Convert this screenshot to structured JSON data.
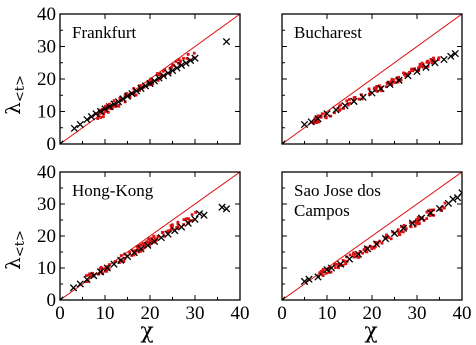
{
  "figure": {
    "ylabel_main": "λ",
    "ylabel_sub": "<t>",
    "xlabel": "χ",
    "accent_color": "#dd1111",
    "fit_color": "#000000"
  },
  "chart_data": [
    {
      "type": "scatter",
      "title": "Frankfurt",
      "title_lines": [
        "Frankfurt"
      ],
      "xlim": [
        0,
        40
      ],
      "ylim": [
        0,
        40
      ],
      "xticks": [
        "0",
        "10",
        "20",
        "30",
        "40"
      ],
      "yticks": [
        "0",
        "10",
        "20",
        "30",
        "40"
      ],
      "reference_line": {
        "x": [
          0,
          40
        ],
        "y": [
          0,
          40
        ]
      },
      "cloud": {
        "x_start": 8,
        "x_end": 30,
        "y_start": 8.5,
        "y_end": 27.8,
        "spread": 1.3,
        "n": 90
      },
      "series": [
        {
          "values": [
            [
              0,
              0
            ],
            [
              3.2,
              4.8
            ],
            [
              4.5,
              6
            ],
            [
              6,
              7.5
            ],
            [
              7,
              8.4
            ],
            [
              8,
              9.3
            ],
            [
              9,
              10
            ],
            [
              10,
              10.8
            ],
            [
              11,
              11.5
            ],
            [
              12,
              12.3
            ],
            [
              13,
              13
            ],
            [
              14,
              13.9
            ],
            [
              15,
              14.7
            ],
            [
              16,
              15.5
            ],
            [
              17,
              16.3
            ],
            [
              18,
              17.1
            ],
            [
              19,
              17.9
            ],
            [
              20,
              18.6
            ],
            [
              21,
              19.4
            ],
            [
              22,
              20.3
            ],
            [
              23,
              21
            ],
            [
              24,
              21.8
            ],
            [
              25,
              22.6
            ],
            [
              26,
              23.4
            ],
            [
              27,
              24.2
            ],
            [
              28,
              24.9
            ],
            [
              29,
              25.7
            ],
            [
              30,
              26.4
            ],
            [
              37,
              31.5
            ]
          ]
        }
      ]
    },
    {
      "type": "scatter",
      "title": "Bucharest",
      "title_lines": [
        "Bucharest"
      ],
      "xlim": [
        0,
        40
      ],
      "ylim": [
        0,
        40
      ],
      "xticks": [
        "0",
        "10",
        "20",
        "30",
        "40"
      ],
      "yticks": [
        "0",
        "10",
        "20",
        "30",
        "40"
      ],
      "reference_line": {
        "x": [
          0,
          40
        ],
        "y": [
          0,
          40
        ]
      },
      "cloud": {
        "x_start": 7,
        "x_end": 35,
        "y_start": 7.2,
        "y_end": 26.5,
        "spread": 1.1,
        "n": 110
      },
      "series": [
        {
          "values": [
            [
              0,
              0
            ],
            [
              5,
              6
            ],
            [
              6.5,
              6.8
            ],
            [
              8,
              7.8
            ],
            [
              10,
              9.3
            ],
            [
              12,
              10.5
            ],
            [
              14,
              11.8
            ],
            [
              16,
              13.1
            ],
            [
              18,
              14.4
            ],
            [
              20,
              15.7
            ],
            [
              22,
              17
            ],
            [
              24,
              18.3
            ],
            [
              26,
              19.6
            ],
            [
              28,
              21
            ],
            [
              30,
              22.3
            ],
            [
              32,
              23.6
            ],
            [
              34,
              25
            ],
            [
              36,
              26
            ],
            [
              37.5,
              27
            ],
            [
              38.5,
              27.8
            ]
          ]
        }
      ]
    },
    {
      "type": "scatter",
      "title": "Hong-Kong",
      "title_lines": [
        "Hong-Kong"
      ],
      "xlim": [
        0,
        40
      ],
      "ylim": [
        0,
        40
      ],
      "xticks": [
        "0",
        "10",
        "20",
        "30",
        "40"
      ],
      "yticks": [
        "0",
        "10",
        "20",
        "30",
        "40"
      ],
      "reference_line": {
        "x": [
          0,
          40
        ],
        "y": [
          0,
          40
        ]
      },
      "cloud": {
        "x_start": 6,
        "x_end": 30,
        "y_start": 6.5,
        "y_end": 26.5,
        "spread": 1.1,
        "n": 100
      },
      "series": [
        {
          "values": [
            [
              0,
              0
            ],
            [
              3,
              3.8
            ],
            [
              4.5,
              5
            ],
            [
              6,
              6.4
            ],
            [
              7.5,
              7.6
            ],
            [
              9,
              8.8
            ],
            [
              10.5,
              10
            ],
            [
              12,
              11.2
            ],
            [
              13.5,
              12.4
            ],
            [
              15,
              13.6
            ],
            [
              16.5,
              14.8
            ],
            [
              18,
              16
            ],
            [
              19.5,
              17.1
            ],
            [
              21,
              18.3
            ],
            [
              22.5,
              19.5
            ],
            [
              24,
              20.6
            ],
            [
              25.5,
              21.7
            ],
            [
              27,
              22.8
            ],
            [
              28.5,
              24
            ],
            [
              30,
              25.2
            ],
            [
              31,
              27
            ],
            [
              32,
              26.5
            ],
            [
              36,
              29
            ],
            [
              37,
              28.5
            ]
          ]
        }
      ]
    },
    {
      "type": "scatter",
      "title": "Sao Jose dos Campos",
      "title_lines": [
        "Sao Jose dos",
        "Campos"
      ],
      "xlim": [
        0,
        40
      ],
      "ylim": [
        0,
        40
      ],
      "xticks": [
        "0",
        "10",
        "20",
        "30",
        "40"
      ],
      "yticks": [
        "0",
        "10",
        "20",
        "30",
        "40"
      ],
      "reference_line": {
        "x": [
          0,
          40
        ],
        "y": [
          0,
          40
        ]
      },
      "cloud": {
        "x_start": 8,
        "x_end": 37,
        "y_start": 7.5,
        "y_end": 30,
        "spread": 1.1,
        "n": 110
      },
      "series": [
        {
          "values": [
            [
              0,
              0
            ],
            [
              5,
              5.8
            ],
            [
              6,
              6.5
            ],
            [
              8,
              7.2
            ],
            [
              10,
              9.5
            ],
            [
              11,
              10
            ],
            [
              13,
              11.2
            ],
            [
              15,
              12.8
            ],
            [
              17,
              14.3
            ],
            [
              19,
              16
            ],
            [
              21,
              17.5
            ],
            [
              23,
              19.2
            ],
            [
              25,
              20.8
            ],
            [
              27,
              22.4
            ],
            [
              29,
              24
            ],
            [
              31,
              25.6
            ],
            [
              33,
              27.2
            ],
            [
              35,
              28.6
            ],
            [
              37,
              30.2
            ],
            [
              38,
              31.5
            ],
            [
              39,
              32
            ],
            [
              40,
              33.5
            ]
          ]
        }
      ]
    }
  ]
}
